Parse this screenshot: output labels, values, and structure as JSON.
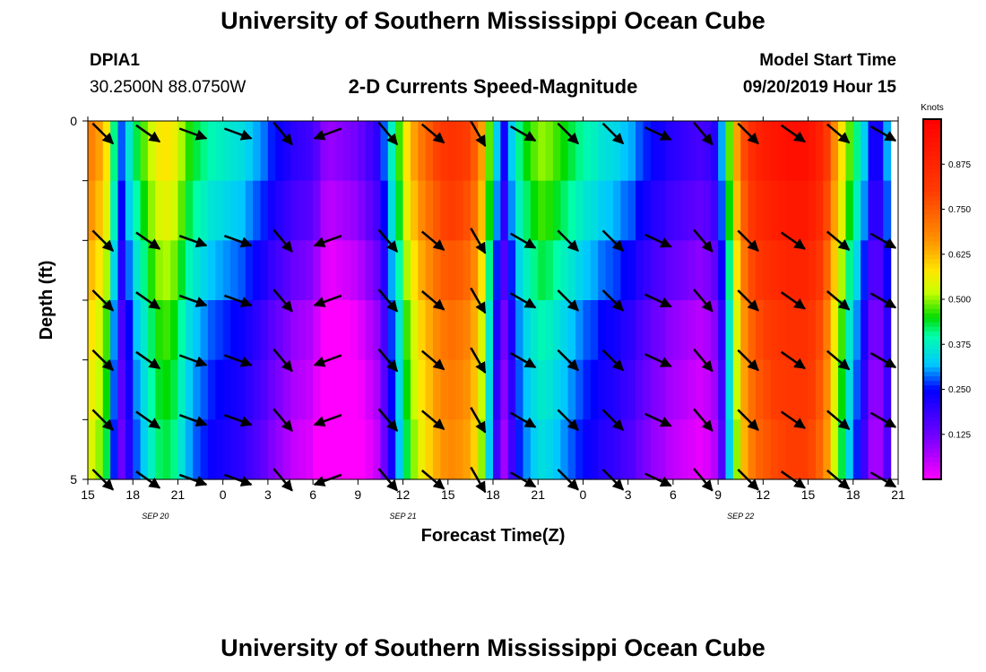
{
  "header": {
    "top_title": "University of Southern Mississippi Ocean Cube",
    "bottom_title": "University of Southern Mississippi Ocean Cube",
    "station_id": "DPIA1",
    "station_coords": "30.2500N 88.0750W",
    "plot_title": "2-D Currents Speed-Magnitude",
    "model_label": "Model Start Time",
    "model_time": "09/20/2019 Hour 15"
  },
  "chart_data": {
    "type": "heatmap",
    "title": "2-D Currents Speed-Magnitude",
    "xlabel": "Forecast Time(Z)",
    "ylabel": "Depth (ft)",
    "x_range_hours": [
      0,
      54
    ],
    "y_range_ft": [
      0,
      5
    ],
    "y_ticks": [
      "0",
      "5"
    ],
    "x_tick_labels": [
      "15",
      "18",
      "21",
      "0",
      "3",
      "6",
      "9",
      "12",
      "15",
      "18",
      "21",
      "0",
      "3",
      "6",
      "9",
      "12",
      "15",
      "18",
      "21"
    ],
    "date_labels": [
      {
        "text": "SEP 20",
        "hour": 4.5
      },
      {
        "text": "SEP 21",
        "hour": 21
      },
      {
        "text": "SEP 22",
        "hour": 43.5
      }
    ],
    "colorbar": {
      "unit": "Knots",
      "range": [
        0.0,
        1.0
      ],
      "ticks": [
        "0.125",
        "0.250",
        "0.375",
        "0.500",
        "0.625",
        "0.750",
        "0.875"
      ]
    },
    "hours": [
      0,
      0.5,
      1,
      1.5,
      2,
      2.5,
      3,
      3.5,
      4,
      4.5,
      5,
      5.5,
      6,
      6.5,
      7,
      7.5,
      8,
      8.5,
      9,
      9.5,
      10,
      10.5,
      11,
      11.5,
      12,
      12.5,
      13,
      13.5,
      14,
      14.5,
      15,
      15.5,
      16,
      16.5,
      17,
      17.5,
      18,
      18.5,
      19,
      19.5,
      20,
      20.5,
      21,
      21.5,
      22,
      22.5,
      23,
      23.5,
      24,
      24.5,
      25,
      25.5,
      26,
      26.5,
      27,
      27.5,
      28,
      28.5,
      29,
      29.5,
      30,
      30.5,
      31,
      31.5,
      32,
      32.5,
      33,
      33.5,
      34,
      34.5,
      35,
      35.5,
      36,
      36.5,
      37,
      37.5,
      38,
      38.5,
      39,
      39.5,
      40,
      40.5,
      41,
      41.5,
      42,
      42.5,
      43,
      43.5,
      44,
      44.5,
      45,
      45.5,
      46,
      46.5,
      47,
      47.5,
      48,
      48.5,
      49,
      49.5,
      50,
      50.5,
      51,
      51.5,
      52,
      52.5,
      53,
      53.5,
      54
    ],
    "surface_speed_knots": [
      0.66,
      0.62,
      0.55,
      0.38,
      0.25,
      0.33,
      0.4,
      0.45,
      0.5,
      0.54,
      0.55,
      0.53,
      0.48,
      0.43,
      0.4,
      0.38,
      0.36,
      0.35,
      0.34,
      0.33,
      0.32,
      0.3,
      0.28,
      0.26,
      0.23,
      0.21,
      0.19,
      0.17,
      0.16,
      0.15,
      0.12,
      0.07,
      0.06,
      0.07,
      0.08,
      0.09,
      0.11,
      0.14,
      0.17,
      0.25,
      0.35,
      0.44,
      0.55,
      0.62,
      0.68,
      0.72,
      0.76,
      0.79,
      0.8,
      0.79,
      0.77,
      0.72,
      0.62,
      0.45,
      0.3,
      0.2,
      0.3,
      0.38,
      0.42,
      0.45,
      0.47,
      0.46,
      0.44,
      0.42,
      0.4,
      0.38,
      0.36,
      0.35,
      0.33,
      0.32,
      0.31,
      0.29,
      0.28,
      0.25,
      0.23,
      0.21,
      0.2,
      0.18,
      0.17,
      0.16,
      0.15,
      0.14,
      0.15,
      0.18,
      0.28,
      0.45,
      0.62,
      0.75,
      0.82,
      0.86,
      0.88,
      0.9,
      0.91,
      0.92,
      0.92,
      0.92,
      0.9,
      0.86,
      0.78,
      0.65,
      0.55,
      0.45,
      0.38,
      0.3,
      0.2,
      0.2,
      0.28
    ],
    "depth_layers_ft": [
      0,
      1,
      2,
      3,
      4,
      5
    ],
    "depth_speed_offset": [
      0.03,
      0.0,
      -0.04,
      -0.08,
      -0.1,
      -0.12
    ],
    "direction_arrow_hours": [
      1,
      4,
      7,
      10,
      13,
      16,
      20,
      23,
      26,
      29,
      32,
      35,
      38,
      41,
      44,
      47,
      50,
      53
    ],
    "direction_arrow_angles_deg": [
      [
        135,
        125,
        110,
        110,
        140,
        250,
        140,
        130,
        150,
        120,
        135,
        135,
        115,
        140,
        135,
        125,
        130,
        120
      ],
      [
        135,
        125,
        110,
        110,
        140,
        250,
        140,
        130,
        150,
        120,
        135,
        135,
        115,
        140,
        135,
        125,
        130,
        120
      ],
      [
        135,
        125,
        110,
        110,
        140,
        250,
        140,
        130,
        150,
        120,
        135,
        135,
        115,
        140,
        135,
        125,
        130,
        120
      ],
      [
        135,
        125,
        110,
        110,
        140,
        250,
        140,
        130,
        150,
        120,
        135,
        135,
        115,
        140,
        135,
        125,
        130,
        120
      ],
      [
        135,
        125,
        110,
        110,
        140,
        250,
        140,
        130,
        150,
        120,
        135,
        135,
        115,
        140,
        135,
        125,
        130,
        120
      ],
      [
        135,
        125,
        110,
        110,
        140,
        250,
        140,
        130,
        150,
        120,
        135,
        135,
        115,
        140,
        135,
        125,
        130,
        120
      ]
    ]
  }
}
